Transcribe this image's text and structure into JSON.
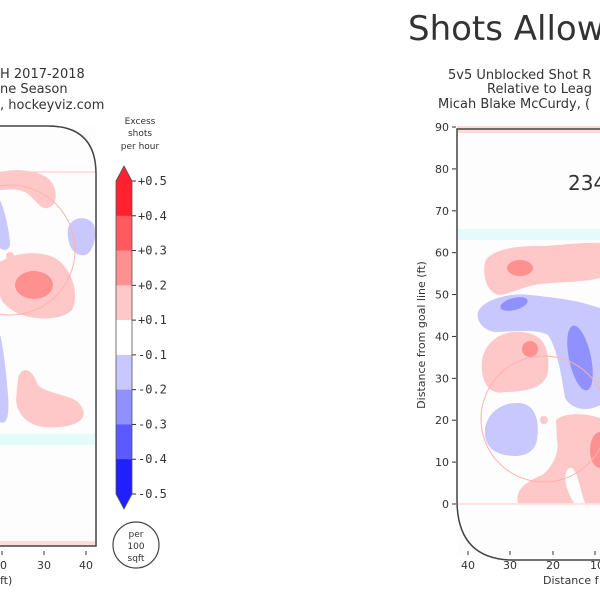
{
  "page": {
    "main_title": "Shots Allowe"
  },
  "chart_data": [
    {
      "type": "heatmap",
      "panel": "left",
      "title_lines": [
        "H 2017-2018",
        "ne Season",
        ", hockeyviz.com"
      ],
      "xlabel": "ft)",
      "x_ticks": [
        "0",
        "30",
        "40"
      ],
      "colorbar": {
        "title_lines": [
          "Excess",
          "shots",
          "per hour"
        ],
        "levels": [
          -0.5,
          -0.4,
          -0.3,
          -0.2,
          -0.1,
          0.1,
          0.2,
          0.3,
          0.4,
          0.5
        ],
        "tick_labels": [
          "+0.5",
          "+0.4",
          "+0.3",
          "+0.2",
          "+0.1",
          "-0.1",
          "-0.2",
          "-0.3",
          "-0.4",
          "-0.5"
        ],
        "colors": {
          "+0.4_to_+0.5": "#ff2030",
          "+0.3_to_+0.4": "#ff5a60",
          "+0.2_to_+0.3": "#ff9090",
          "+0.1_to_+0.2": "#ffc8c8",
          "-0.1_to_+0.1": "#ffffff",
          "-0.2_to_-0.1": "#c8c8ff",
          "-0.3_to_-0.2": "#9090ff",
          "-0.4_to_-0.3": "#5a5aff",
          "-0.5_to_-0.4": "#2020ff"
        },
        "extend": "both"
      },
      "unit_badge_lines": [
        "per",
        "100",
        "sqft"
      ]
    },
    {
      "type": "heatmap",
      "panel": "right",
      "title_lines": [
        "5v5 Unblocked Shot R",
        "Relative to Leag",
        "Micah Blake McCurdy, ("
      ],
      "ylabel": "Distance from goal line (ft)",
      "xlabel": "Distance f",
      "y_ticks": [
        "0",
        "10",
        "20",
        "30",
        "40",
        "50",
        "60",
        "70",
        "80",
        "90"
      ],
      "x_ticks": [
        "40",
        "30",
        "20",
        "10"
      ],
      "ylim": [
        0,
        90
      ],
      "annotation": "234"
    }
  ]
}
